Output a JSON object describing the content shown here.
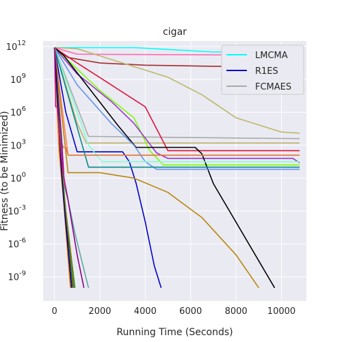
{
  "chart_data": {
    "type": "line",
    "title": "cigar",
    "xlabel": "Running Time (Seconds)",
    "ylabel": "Fitness (to be Minimized)",
    "x_scale": "linear",
    "y_scale": "log",
    "xlim": [
      -500,
      11100
    ],
    "ylim_log10": [
      -11.2,
      12.5
    ],
    "x_ticks": [
      0,
      2000,
      4000,
      6000,
      8000,
      10000
    ],
    "x_tick_labels": [
      "0",
      "2000",
      "4000",
      "6000",
      "8000",
      "10000"
    ],
    "y_tick_exponents": [
      12,
      9,
      6,
      3,
      0,
      -3,
      -6,
      -9
    ],
    "y_tick_labels": [
      "10^12",
      "10^9",
      "10^6",
      "10^3",
      "10^0",
      "10^-3",
      "10^-6",
      "10^-9"
    ],
    "grid": true,
    "background": "#eaeaf2",
    "legend_position": "top-right",
    "legend_entries": [
      "LMCMA",
      "R1ES",
      "FCMAES"
    ],
    "series": [
      {
        "name": "LMCMA",
        "color": "#00ffff",
        "x": [
          0,
          3500,
          7000,
          10800
        ],
        "log10_y": [
          11.9,
          11.9,
          11.5,
          11.5
        ]
      },
      {
        "name": "R1ES",
        "color": "#0000cd",
        "x": [
          0,
          500,
          1000,
          3000,
          3300,
          3600,
          4000,
          4400,
          4700
        ],
        "log10_y": [
          11.9,
          6,
          2.4,
          2.4,
          1.5,
          -0.5,
          -4,
          -8,
          -10
        ]
      },
      {
        "name": "FCMAES",
        "color": "#a9a9a9",
        "x": [
          0,
          1500,
          1800,
          6000,
          10800
        ],
        "log10_y": [
          11.9,
          3.8,
          3.8,
          3.7,
          3.6
        ]
      },
      {
        "color": "#a52a2a",
        "x": [
          0,
          600,
          2000,
          4000,
          7000,
          10800
        ],
        "log10_y": [
          11.9,
          11.0,
          10.5,
          10.3,
          10.2,
          10.2
        ]
      },
      {
        "color": "#ff69b4",
        "x": [
          0,
          1000,
          10800
        ],
        "log10_y": [
          11.9,
          11.3,
          11.2
        ]
      },
      {
        "color": "#bdb76b",
        "x": [
          0,
          1000,
          3000,
          5000,
          6500,
          8000,
          10000,
          10800
        ],
        "log10_y": [
          11.9,
          11.8,
          10.5,
          9.2,
          7.6,
          5.5,
          4.2,
          4.1
        ]
      },
      {
        "color": "#c0b06a",
        "x": [
          0,
          1000,
          1400,
          1800,
          10800
        ],
        "log10_y": [
          11.9,
          5,
          3.2,
          3.2,
          3.2
        ]
      },
      {
        "color": "#dc143c",
        "x": [
          0,
          1000,
          2500,
          4000,
          4500,
          5000,
          10800
        ],
        "log10_y": [
          11.9,
          10.5,
          8.5,
          6.5,
          4.5,
          2.5,
          2.5
        ]
      },
      {
        "color": "#7cfc00",
        "x": [
          0,
          2000,
          3500,
          4200,
          4800,
          10800
        ],
        "log10_y": [
          11.9,
          8.0,
          5.5,
          2.5,
          1.2,
          1.2
        ]
      },
      {
        "color": "#9932cc",
        "x": [
          0,
          1000,
          2500,
          3500,
          4500,
          5000,
          10000,
          10500,
          10800
        ],
        "log10_y": [
          11.9,
          9.5,
          7.0,
          5.0,
          2.3,
          1.8,
          1.8,
          1.8,
          1.4
        ]
      },
      {
        "color": "#000000",
        "x": [
          0,
          400,
          2800,
          3600,
          6200,
          6500,
          7000,
          9700
        ],
        "log10_y": [
          11.9,
          11.2,
          4.8,
          2.8,
          2.8,
          2.2,
          -0.5,
          -10
        ]
      },
      {
        "color": "#6495ed",
        "x": [
          0,
          1000,
          2500,
          3500,
          4000,
          4500,
          10800
        ],
        "log10_y": [
          11.9,
          8.5,
          5.0,
          3.0,
          1.5,
          0.8,
          0.8
        ]
      },
      {
        "color": "#7fffd4",
        "x": [
          0,
          1000,
          1500,
          2100,
          10800
        ],
        "log10_y": [
          11.9,
          6.0,
          3.0,
          1.5,
          1.5
        ]
      },
      {
        "color": "#008b8b",
        "x": [
          0,
          1500,
          10800
        ],
        "log10_y": [
          11.9,
          1.0,
          1.0
        ]
      },
      {
        "color": "#ff7f50",
        "x": [
          0,
          600,
          10800
        ],
        "log10_y": [
          11.9,
          2.1,
          2.1
        ]
      },
      {
        "color": "#b8860b",
        "x": [
          0,
          600,
          2000,
          3500,
          5000,
          6500,
          8000,
          9000
        ],
        "log10_y": [
          11.9,
          0.5,
          0.5,
          0.0,
          -1.3,
          -3.6,
          -7.0,
          -10
        ]
      },
      {
        "color": "#e07b39",
        "x": [
          0,
          220,
          380,
          500,
          600,
          10800
        ],
        "log10_y": [
          11.9,
          4.0,
          2.8,
          2.8,
          2.1,
          2.1
        ]
      },
      {
        "color": "#5fa8a0",
        "x": [
          0,
          250,
          350,
          600,
          900,
          1200,
          1500
        ],
        "log10_y": [
          11.9,
          4.5,
          0,
          -2,
          -5,
          -7.5,
          -10
        ]
      },
      {
        "color": "#8b008b",
        "x": [
          0,
          300,
          420,
          600,
          800,
          1000,
          1300
        ],
        "log10_y": [
          11.9,
          4.0,
          0,
          -2,
          -4.5,
          -7,
          -10
        ]
      },
      {
        "color": "#228b22",
        "x": [
          0,
          350,
          500,
          700,
          900
        ],
        "log10_y": [
          11.9,
          0.5,
          -3,
          -6.5,
          -10
        ]
      },
      {
        "color": "#808000",
        "x": [
          0,
          300,
          500,
          700,
          850
        ],
        "log10_y": [
          11.9,
          1.0,
          -3,
          -6.5,
          -10
        ]
      },
      {
        "color": "#2f4f4f",
        "x": [
          0,
          300,
          450,
          650,
          800
        ],
        "log10_y": [
          11.9,
          0.5,
          -3,
          -6.5,
          -10
        ]
      },
      {
        "color": "#ff8c00",
        "x": [
          0,
          200,
          400,
          550,
          700
        ],
        "log10_y": [
          11.9,
          2.5,
          -2,
          -6,
          -10
        ]
      },
      {
        "color": "#000080",
        "x": [
          0,
          300,
          450,
          600,
          750
        ],
        "log10_y": [
          11.9,
          0.8,
          -3,
          -6.5,
          -10
        ]
      },
      {
        "color": "#c71585",
        "x": [
          0,
          50,
          120,
          200,
          350,
          500
        ],
        "log10_y": [
          11.9,
          6.5,
          6.5,
          4.5,
          1.0,
          -1.0
        ]
      }
    ]
  }
}
